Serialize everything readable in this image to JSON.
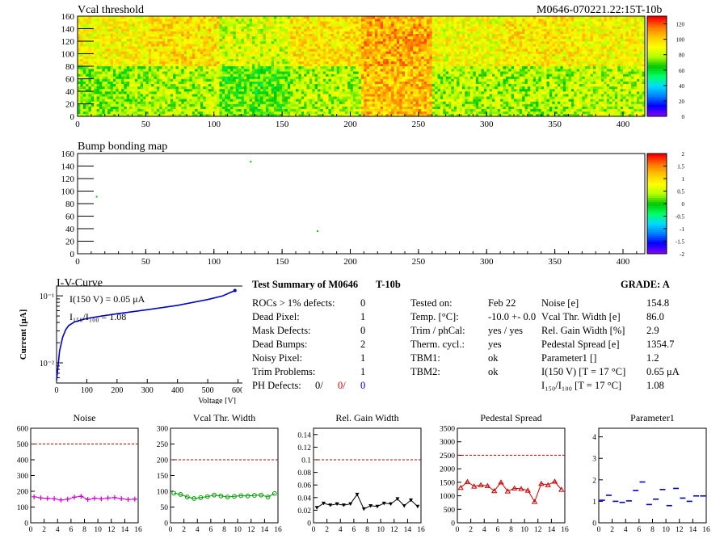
{
  "module_label": "M0646-070221.22:15T-10b",
  "vcal_map": {
    "title": "Vcal threshold",
    "x_ticks": [
      "0",
      "50",
      "100",
      "150",
      "200",
      "250",
      "300",
      "350",
      "400"
    ],
    "y_ticks": [
      "0",
      "20",
      "40",
      "60",
      "80",
      "100",
      "120",
      "140",
      "160"
    ],
    "palette_ticks": [
      "0",
      "20",
      "40",
      "60",
      "80",
      "100",
      "120"
    ],
    "xlim": [
      0,
      416
    ],
    "ylim": [
      0,
      160
    ],
    "zlim": [
      0,
      130
    ],
    "roc_levels_top": [
      92,
      97,
      85,
      96,
      108,
      90,
      95,
      92
    ],
    "roc_levels_bottom": [
      75,
      80,
      70,
      80,
      105,
      80,
      78,
      82
    ]
  },
  "bump_map": {
    "title": "Bump bonding map",
    "x_ticks": [
      "0",
      "50",
      "100",
      "150",
      "200",
      "250",
      "300",
      "350",
      "400"
    ],
    "y_ticks": [
      "0",
      "20",
      "40",
      "60",
      "80",
      "100",
      "120",
      "140",
      "160"
    ],
    "palette_ticks": [
      "-2",
      "-1.5",
      "-1",
      "-0.5",
      "0",
      "0.5",
      "1",
      "1.5",
      "2"
    ],
    "xlim": [
      0,
      416
    ],
    "ylim": [
      0,
      160
    ],
    "points": [
      [
        14,
        91
      ],
      [
        127,
        147
      ],
      [
        176,
        36
      ]
    ]
  },
  "iv_curve": {
    "title": "I-V-Curve",
    "xlabel": "Voltage [V]",
    "ylabel": "Current [μA]",
    "x_ticks": [
      "0",
      "100",
      "200",
      "300",
      "400",
      "500",
      "600"
    ],
    "y_tick_labels": [
      "10⁻¹",
      "10⁻²"
    ],
    "annotation_i150": "I(150 V) = 0.05 μA",
    "annotation_ratio": "I₁₅₀/I₁₀₀ = 1.08",
    "series": [
      {
        "v": 0,
        "i": 0.0055
      },
      {
        "v": 5,
        "i": 0.009
      },
      {
        "v": 10,
        "i": 0.015
      },
      {
        "v": 20,
        "i": 0.024
      },
      {
        "v": 30,
        "i": 0.031
      },
      {
        "v": 40,
        "i": 0.036
      },
      {
        "v": 60,
        "i": 0.041
      },
      {
        "v": 100,
        "i": 0.046
      },
      {
        "v": 150,
        "i": 0.05
      },
      {
        "v": 200,
        "i": 0.054
      },
      {
        "v": 300,
        "i": 0.062
      },
      {
        "v": 400,
        "i": 0.072
      },
      {
        "v": 500,
        "i": 0.088
      },
      {
        "v": 550,
        "i": 0.1
      },
      {
        "v": 580,
        "i": 0.115
      },
      {
        "v": 590,
        "i": 0.12
      }
    ]
  },
  "summary": {
    "title": "Test Summary of M0646",
    "tag": "T-10b",
    "grade": "GRADE:  A",
    "defects": [
      {
        "label": "ROCs > 1% defects:",
        "value": "0"
      },
      {
        "label": "Dead Pixel:",
        "value": "1"
      },
      {
        "label": "Mask Defects:",
        "value": "0"
      },
      {
        "label": "Dead Bumps:",
        "value": "2"
      },
      {
        "label": "Noisy Pixel:",
        "value": "1"
      },
      {
        "label": "Trim Problems:",
        "value": "1"
      }
    ],
    "ph_label": "PH Defects:",
    "ph_values": [
      "0/",
      "0/",
      "0"
    ],
    "ph_colors": [
      "#000000",
      "#cc0000",
      "#0000cc"
    ],
    "conditions": [
      {
        "label": "Tested on:",
        "value": "Feb 22"
      },
      {
        "label": "Temp. [°C]:",
        "value": "-10.0 +- 0.0"
      },
      {
        "label": "Trim / phCal:",
        "value": "yes / yes"
      },
      {
        "label": "Therm. cycl.:",
        "value": "yes"
      },
      {
        "label": "TBM1:",
        "value": "ok"
      },
      {
        "label": "TBM2:",
        "value": "ok"
      }
    ],
    "results": [
      {
        "label": "Noise [e]",
        "value": "154.8"
      },
      {
        "label": "Vcal Thr. Width [e]",
        "value": "86.0"
      },
      {
        "label": "Rel. Gain Width [%]",
        "value": "2.9"
      },
      {
        "label": "Pedestal Spread [e]",
        "value": "1354.7"
      },
      {
        "label": "Parameter1 []",
        "value": "1.2"
      },
      {
        "label": "I(150 V) [T = 17 °C]",
        "value": "0.65 μA"
      },
      {
        "label": "I₁₅₀/I₁₀₀  [T = 17 °C]",
        "value": "1.08"
      }
    ]
  },
  "chart_data": [
    {
      "type": "line",
      "title": "Noise",
      "color": "#cc00cc",
      "marker": "plus",
      "x": [
        0,
        1,
        2,
        3,
        4,
        5,
        6,
        7,
        8,
        9,
        10,
        11,
        12,
        13,
        14,
        15
      ],
      "values": [
        165,
        158,
        155,
        153,
        145,
        150,
        163,
        168,
        148,
        156,
        152,
        157,
        160,
        153,
        148,
        150
      ],
      "ylim": [
        0,
        600
      ],
      "y_ticks": [
        0,
        100,
        200,
        300,
        400,
        500,
        600
      ],
      "cut": 500
    },
    {
      "type": "line",
      "title": "Vcal Thr. Width",
      "color": "#009900",
      "marker": "circle",
      "x": [
        0,
        1,
        2,
        3,
        4,
        5,
        6,
        7,
        8,
        9,
        10,
        11,
        12,
        13,
        14,
        15
      ],
      "values": [
        94,
        90,
        82,
        77,
        80,
        83,
        88,
        85,
        82,
        84,
        86,
        85,
        87,
        88,
        82,
        93
      ],
      "ylim": [
        0,
        300
      ],
      "y_ticks": [
        0,
        50,
        100,
        150,
        200,
        250,
        300
      ],
      "cut": 200
    },
    {
      "type": "line",
      "title": "Rel. Gain Width",
      "color": "#000000",
      "marker": "tri-down",
      "x": [
        0,
        1,
        2,
        3,
        4,
        5,
        6,
        7,
        8,
        9,
        10,
        11,
        12,
        13,
        14,
        15
      ],
      "values": [
        0.024,
        0.031,
        0.028,
        0.03,
        0.028,
        0.03,
        0.045,
        0.022,
        0.027,
        0.026,
        0.031,
        0.03,
        0.038,
        0.027,
        0.036,
        0.026
      ],
      "ylim": [
        0,
        0.15
      ],
      "y_ticks": [
        0,
        0.02,
        0.04,
        0.06,
        0.08,
        0.1,
        0.12,
        0.14
      ],
      "cut": 0.1
    },
    {
      "type": "line",
      "title": "Pedestal Spread",
      "color": "#cc0000",
      "marker": "tri-up",
      "x": [
        0,
        1,
        2,
        3,
        4,
        5,
        6,
        7,
        8,
        9,
        10,
        11,
        12,
        13,
        14,
        15
      ],
      "values": [
        1300,
        1520,
        1350,
        1400,
        1370,
        1180,
        1500,
        1170,
        1280,
        1260,
        1200,
        780,
        1450,
        1400,
        1530,
        1230
      ],
      "ylim": [
        0,
        3500
      ],
      "y_ticks": [
        0,
        500,
        1000,
        1500,
        2000,
        2500,
        3000,
        3500
      ],
      "cut": 2500
    },
    {
      "type": "scatter",
      "title": "Parameter1",
      "color": "#0000cc",
      "marker": "hbar",
      "x": [
        0,
        1,
        2,
        3,
        4,
        5,
        6,
        7,
        8,
        9,
        10,
        11,
        12,
        13,
        14,
        15
      ],
      "values": [
        1.05,
        1.28,
        1.0,
        0.95,
        1.02,
        1.5,
        1.9,
        0.85,
        1.1,
        1.55,
        0.8,
        1.6,
        1.15,
        1.0,
        1.25,
        1.25
      ],
      "ylim": [
        0,
        4.4
      ],
      "y_ticks": [
        0,
        1,
        2,
        3,
        4
      ]
    }
  ]
}
